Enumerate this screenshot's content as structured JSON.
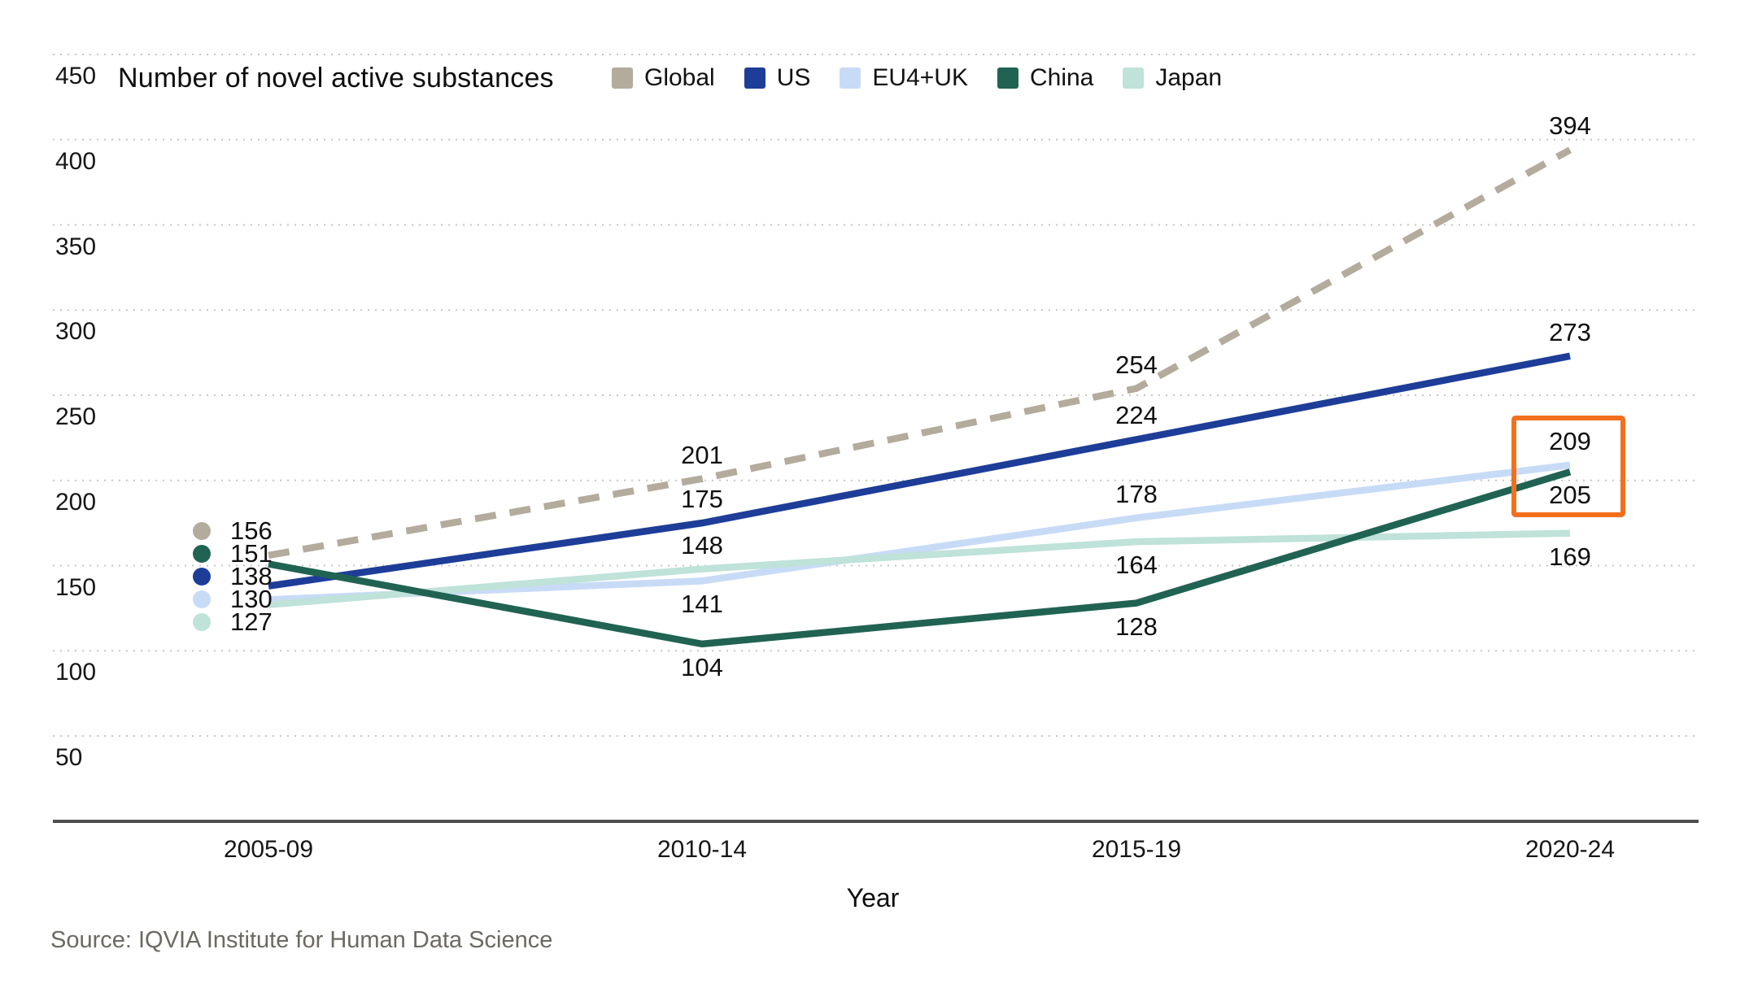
{
  "source": "Source: IQVIA Institute for Human Data Science",
  "chart_data": {
    "type": "line",
    "title": "Number of novel active substances",
    "xlabel": "Year",
    "categories": [
      "2005-09",
      "2010-14",
      "2015-19",
      "2020-24"
    ],
    "yticks": [
      450,
      400,
      350,
      300,
      250,
      200,
      150,
      100,
      50
    ],
    "ylim": [
      0,
      450
    ],
    "grid": "horizontal-dotted",
    "legend_position": "top",
    "series": [
      {
        "name": "Global",
        "color": "#b3ab9c",
        "style": "dashed",
        "values": [
          156,
          201,
          254,
          394
        ],
        "label_side": [
          "start",
          "above",
          "above",
          "above"
        ]
      },
      {
        "name": "US",
        "color": "#1e3d98",
        "style": "solid",
        "values": [
          138,
          175,
          224,
          273
        ],
        "label_side": [
          "start",
          "above",
          "above",
          "above"
        ]
      },
      {
        "name": "EU4+UK",
        "color": "#c8dbf6",
        "style": "solid",
        "values": [
          130,
          141,
          178,
          209
        ],
        "label_side": [
          "start",
          "below",
          "above",
          "above"
        ]
      },
      {
        "name": "China",
        "color": "#216353",
        "style": "solid",
        "values": [
          151,
          104,
          128,
          205
        ],
        "label_side": [
          "start",
          "below",
          "below",
          "below"
        ]
      },
      {
        "name": "Japan",
        "color": "#bfe2d9",
        "style": "solid",
        "values": [
          127,
          148,
          164,
          169
        ],
        "label_side": [
          "start",
          "above",
          "below",
          "below"
        ]
      }
    ],
    "highlight": {
      "series": [
        "EU4+UK",
        "China"
      ],
      "category": "2020-24",
      "values": [
        209,
        205
      ],
      "color": "#f2701d"
    }
  }
}
